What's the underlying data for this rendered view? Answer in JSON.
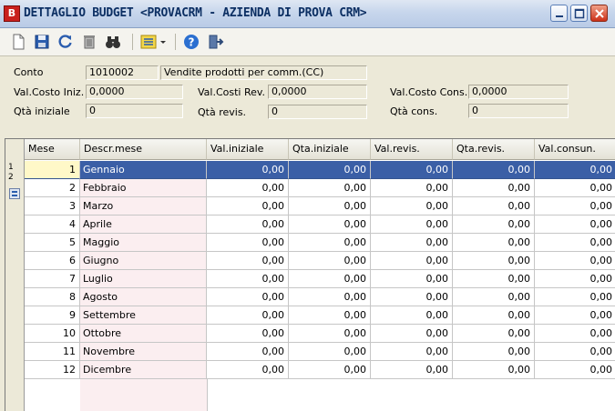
{
  "window": {
    "icon_letter": "B",
    "title": "DETTAGLIO BUDGET <PROVACRM - AZIENDA DI PROVA CRM>"
  },
  "form": {
    "conto_label": "Conto",
    "conto_code": "1010002",
    "conto_desc": "Vendite prodotti per comm.(CC)",
    "val_costo_iniz_label": "Val.Costo Iniz.",
    "val_costo_iniz": "0,0000",
    "val_costi_rev_label": "Val.Costi Rev.",
    "val_costi_rev": "0,0000",
    "val_costo_cons_label": "Val.Costo Cons.",
    "val_costo_cons": "0,0000",
    "qta_iniziale_label": "Qtà iniziale",
    "qta_iniziale": "0",
    "qta_revis_label": "Qtà revis.",
    "qta_revis": "0",
    "qta_cons_label": "Qtà cons.",
    "qta_cons": "0"
  },
  "grid": {
    "selector_labels": [
      "1",
      "2"
    ],
    "headers": [
      "Mese",
      "Descr.mese",
      "Val.iniziale",
      "Qta.iniziale",
      "Val.revis.",
      "Qta.revis.",
      "Val.consun."
    ],
    "rows": [
      {
        "mese": "1",
        "descr": "Gennaio",
        "v1": "0,00",
        "v2": "0,00",
        "v3": "0,00",
        "v4": "0,00",
        "v5": "0,00"
      },
      {
        "mese": "2",
        "descr": "Febbraio",
        "v1": "0,00",
        "v2": "0,00",
        "v3": "0,00",
        "v4": "0,00",
        "v5": "0,00"
      },
      {
        "mese": "3",
        "descr": "Marzo",
        "v1": "0,00",
        "v2": "0,00",
        "v3": "0,00",
        "v4": "0,00",
        "v5": "0,00"
      },
      {
        "mese": "4",
        "descr": "Aprile",
        "v1": "0,00",
        "v2": "0,00",
        "v3": "0,00",
        "v4": "0,00",
        "v5": "0,00"
      },
      {
        "mese": "5",
        "descr": "Maggio",
        "v1": "0,00",
        "v2": "0,00",
        "v3": "0,00",
        "v4": "0,00",
        "v5": "0,00"
      },
      {
        "mese": "6",
        "descr": "Giugno",
        "v1": "0,00",
        "v2": "0,00",
        "v3": "0,00",
        "v4": "0,00",
        "v5": "0,00"
      },
      {
        "mese": "7",
        "descr": "Luglio",
        "v1": "0,00",
        "v2": "0,00",
        "v3": "0,00",
        "v4": "0,00",
        "v5": "0,00"
      },
      {
        "mese": "8",
        "descr": "Agosto",
        "v1": "0,00",
        "v2": "0,00",
        "v3": "0,00",
        "v4": "0,00",
        "v5": "0,00"
      },
      {
        "mese": "9",
        "descr": "Settembre",
        "v1": "0,00",
        "v2": "0,00",
        "v3": "0,00",
        "v4": "0,00",
        "v5": "0,00"
      },
      {
        "mese": "10",
        "descr": "Ottobre",
        "v1": "0,00",
        "v2": "0,00",
        "v3": "0,00",
        "v4": "0,00",
        "v5": "0,00"
      },
      {
        "mese": "11",
        "descr": "Novembre",
        "v1": "0,00",
        "v2": "0,00",
        "v3": "0,00",
        "v4": "0,00",
        "v5": "0,00"
      },
      {
        "mese": "12",
        "descr": "Dicembre",
        "v1": "0,00",
        "v2": "0,00",
        "v3": "0,00",
        "v4": "0,00",
        "v5": "0,00"
      }
    ]
  }
}
